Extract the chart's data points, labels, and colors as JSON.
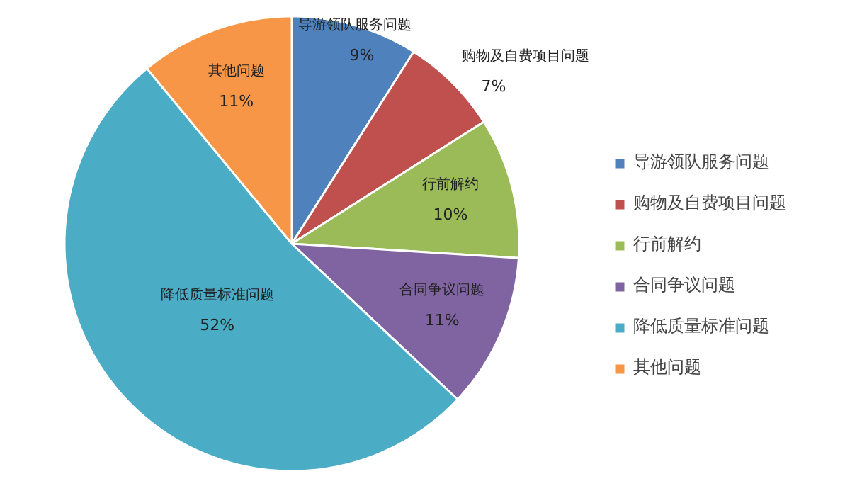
{
  "chart_data": {
    "type": "pie",
    "categories": [
      "导游领队服务问题",
      "购物及自费项目问题",
      "行前解约",
      "合同争议问题",
      "降低质量标准问题",
      "其他问题"
    ],
    "values": [
      9,
      7,
      10,
      11,
      52,
      11
    ],
    "colors": [
      "#4f81bd",
      "#c0504d",
      "#9bbb59",
      "#8064a2",
      "#4bacc6",
      "#f79646"
    ],
    "value_labels": [
      "9%",
      "7%",
      "10%",
      "11%",
      "52%",
      "11%"
    ],
    "legend": "right"
  }
}
